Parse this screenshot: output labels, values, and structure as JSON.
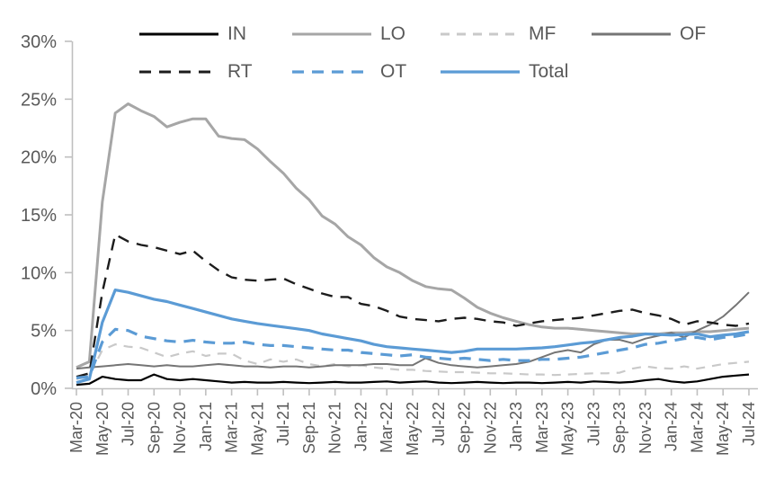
{
  "chart_data": {
    "type": "line",
    "title": "",
    "xlabel": "",
    "ylabel": "",
    "grid": false,
    "legend_position": "top",
    "legend_rows": [
      [
        "IN",
        "LO",
        "MF",
        "OF"
      ],
      [
        "RT",
        "OT",
        "Total"
      ]
    ],
    "ylim": [
      0,
      30
    ],
    "yticks": [
      0,
      5,
      10,
      15,
      20,
      25,
      30
    ],
    "ytick_suffix": "%",
    "points_per_label": 2,
    "x_tick_labels": [
      "Mar-20",
      "May-20",
      "Jul-20",
      "Sep-20",
      "Nov-20",
      "Jan-21",
      "Mar-21",
      "May-21",
      "Jul-21",
      "Sep-21",
      "Nov-21",
      "Jan-22",
      "Mar-22",
      "May-22",
      "Jul-22",
      "Sep-22",
      "Nov-22",
      "Jan-23",
      "Mar-23",
      "May-23",
      "Jul-23",
      "Sep-23",
      "Nov-23",
      "Jan-24",
      "Mar-24",
      "May-24",
      "Jul-24"
    ],
    "colors": {
      "axis": "#bfbfbf",
      "text": "#595959",
      "accent_blue": "#5b9bd5"
    },
    "series": [
      {
        "name": "IN",
        "color": "#000000",
        "dash": "",
        "width": 2.2,
        "values": [
          0.3,
          0.4,
          1.0,
          0.8,
          0.7,
          0.7,
          1.2,
          0.8,
          0.7,
          0.8,
          0.7,
          0.6,
          0.5,
          0.55,
          0.5,
          0.5,
          0.55,
          0.5,
          0.45,
          0.5,
          0.55,
          0.5,
          0.5,
          0.55,
          0.6,
          0.5,
          0.55,
          0.6,
          0.5,
          0.45,
          0.5,
          0.55,
          0.5,
          0.45,
          0.5,
          0.5,
          0.45,
          0.5,
          0.55,
          0.5,
          0.6,
          0.55,
          0.5,
          0.55,
          0.7,
          0.8,
          0.6,
          0.5,
          0.6,
          0.8,
          1.0,
          1.1,
          1.2
        ]
      },
      {
        "name": "LO",
        "color": "#a6a6a6",
        "dash": "",
        "width": 3,
        "values": [
          1.8,
          2.3,
          16.1,
          23.8,
          24.6,
          24.0,
          23.5,
          22.6,
          23.0,
          23.3,
          23.3,
          21.8,
          21.6,
          21.5,
          20.7,
          19.6,
          18.6,
          17.3,
          16.3,
          14.9,
          14.2,
          13.1,
          12.4,
          11.3,
          10.5,
          10.0,
          9.3,
          8.8,
          8.6,
          8.5,
          7.8,
          7.0,
          6.5,
          6.1,
          5.8,
          5.5,
          5.3,
          5.2,
          5.2,
          5.1,
          5.0,
          4.9,
          4.8,
          4.7,
          4.7,
          4.7,
          4.8,
          4.8,
          4.9,
          4.9,
          5.0,
          5.1,
          5.2
        ]
      },
      {
        "name": "MF",
        "color": "#c9c9c9",
        "dash": "10 8",
        "width": 2.2,
        "values": [
          0.8,
          1.1,
          3.3,
          3.8,
          3.6,
          3.5,
          3.1,
          2.7,
          3.0,
          3.2,
          2.8,
          3.0,
          3.0,
          2.4,
          2.1,
          2.5,
          2.3,
          2.5,
          2.1,
          1.9,
          2.1,
          1.9,
          2.0,
          1.8,
          1.7,
          1.6,
          1.6,
          1.5,
          1.45,
          1.4,
          1.4,
          1.35,
          1.3,
          1.3,
          1.25,
          1.2,
          1.2,
          1.15,
          1.2,
          1.25,
          1.3,
          1.3,
          1.35,
          1.7,
          1.9,
          1.75,
          1.7,
          1.9,
          1.7,
          1.9,
          2.1,
          2.2,
          2.3
        ]
      },
      {
        "name": "OF",
        "color": "#757575",
        "dash": "",
        "width": 2,
        "values": [
          1.7,
          1.8,
          1.9,
          2.0,
          2.1,
          2.0,
          1.9,
          2.0,
          1.9,
          1.9,
          2.0,
          2.1,
          2.0,
          1.9,
          1.9,
          1.8,
          1.9,
          1.9,
          1.8,
          1.9,
          2.0,
          2.0,
          2.0,
          2.1,
          2.1,
          2.0,
          2.0,
          2.6,
          2.2,
          2.0,
          1.9,
          1.8,
          1.9,
          2.0,
          2.1,
          2.3,
          2.7,
          3.1,
          3.3,
          3.1,
          3.8,
          4.2,
          4.2,
          3.9,
          4.3,
          4.55,
          4.8,
          4.4,
          5.0,
          5.5,
          6.2,
          7.2,
          8.3
        ]
      },
      {
        "name": "RT",
        "color": "#1c1c1c",
        "dash": "13 9",
        "width": 2.4,
        "values": [
          1.0,
          1.3,
          8.3,
          13.3,
          12.7,
          12.4,
          12.2,
          11.9,
          11.6,
          11.9,
          11.0,
          10.2,
          9.6,
          9.4,
          9.3,
          9.4,
          9.5,
          9.0,
          8.6,
          8.2,
          7.9,
          7.9,
          7.3,
          7.1,
          6.7,
          6.2,
          6.0,
          5.9,
          5.8,
          6.0,
          6.1,
          6.0,
          5.8,
          5.7,
          5.4,
          5.6,
          5.8,
          5.9,
          6.0,
          6.1,
          6.3,
          6.5,
          6.7,
          6.8,
          6.5,
          6.3,
          6.0,
          5.5,
          5.8,
          5.7,
          5.5,
          5.4,
          5.6
        ]
      },
      {
        "name": "OT",
        "color": "#5b9bd5",
        "dash": "13 9",
        "width": 3.2,
        "values": [
          0.9,
          1.0,
          4.0,
          5.1,
          5.0,
          4.5,
          4.3,
          4.1,
          4.0,
          4.15,
          4.0,
          3.9,
          3.9,
          4.0,
          3.8,
          3.7,
          3.7,
          3.6,
          3.5,
          3.4,
          3.3,
          3.3,
          3.1,
          3.0,
          2.9,
          2.8,
          2.9,
          2.7,
          2.6,
          2.5,
          2.6,
          2.5,
          2.4,
          2.5,
          2.4,
          2.4,
          2.5,
          2.5,
          2.6,
          2.7,
          2.9,
          3.1,
          3.3,
          3.5,
          3.8,
          3.9,
          4.1,
          4.3,
          4.4,
          4.2,
          4.4,
          4.5,
          4.7
        ]
      },
      {
        "name": "Total",
        "color": "#5b9bd5",
        "dash": "",
        "width": 3.2,
        "values": [
          0.5,
          0.8,
          5.7,
          8.5,
          8.3,
          8.0,
          7.7,
          7.5,
          7.2,
          6.9,
          6.6,
          6.3,
          6.0,
          5.8,
          5.6,
          5.45,
          5.3,
          5.15,
          5.0,
          4.7,
          4.5,
          4.3,
          4.1,
          3.8,
          3.6,
          3.5,
          3.4,
          3.3,
          3.2,
          3.1,
          3.2,
          3.4,
          3.4,
          3.4,
          3.4,
          3.45,
          3.5,
          3.6,
          3.75,
          3.9,
          4.0,
          4.2,
          4.4,
          4.5,
          4.7,
          4.65,
          4.6,
          4.65,
          4.7,
          4.45,
          4.6,
          4.7,
          4.9
        ]
      }
    ]
  }
}
